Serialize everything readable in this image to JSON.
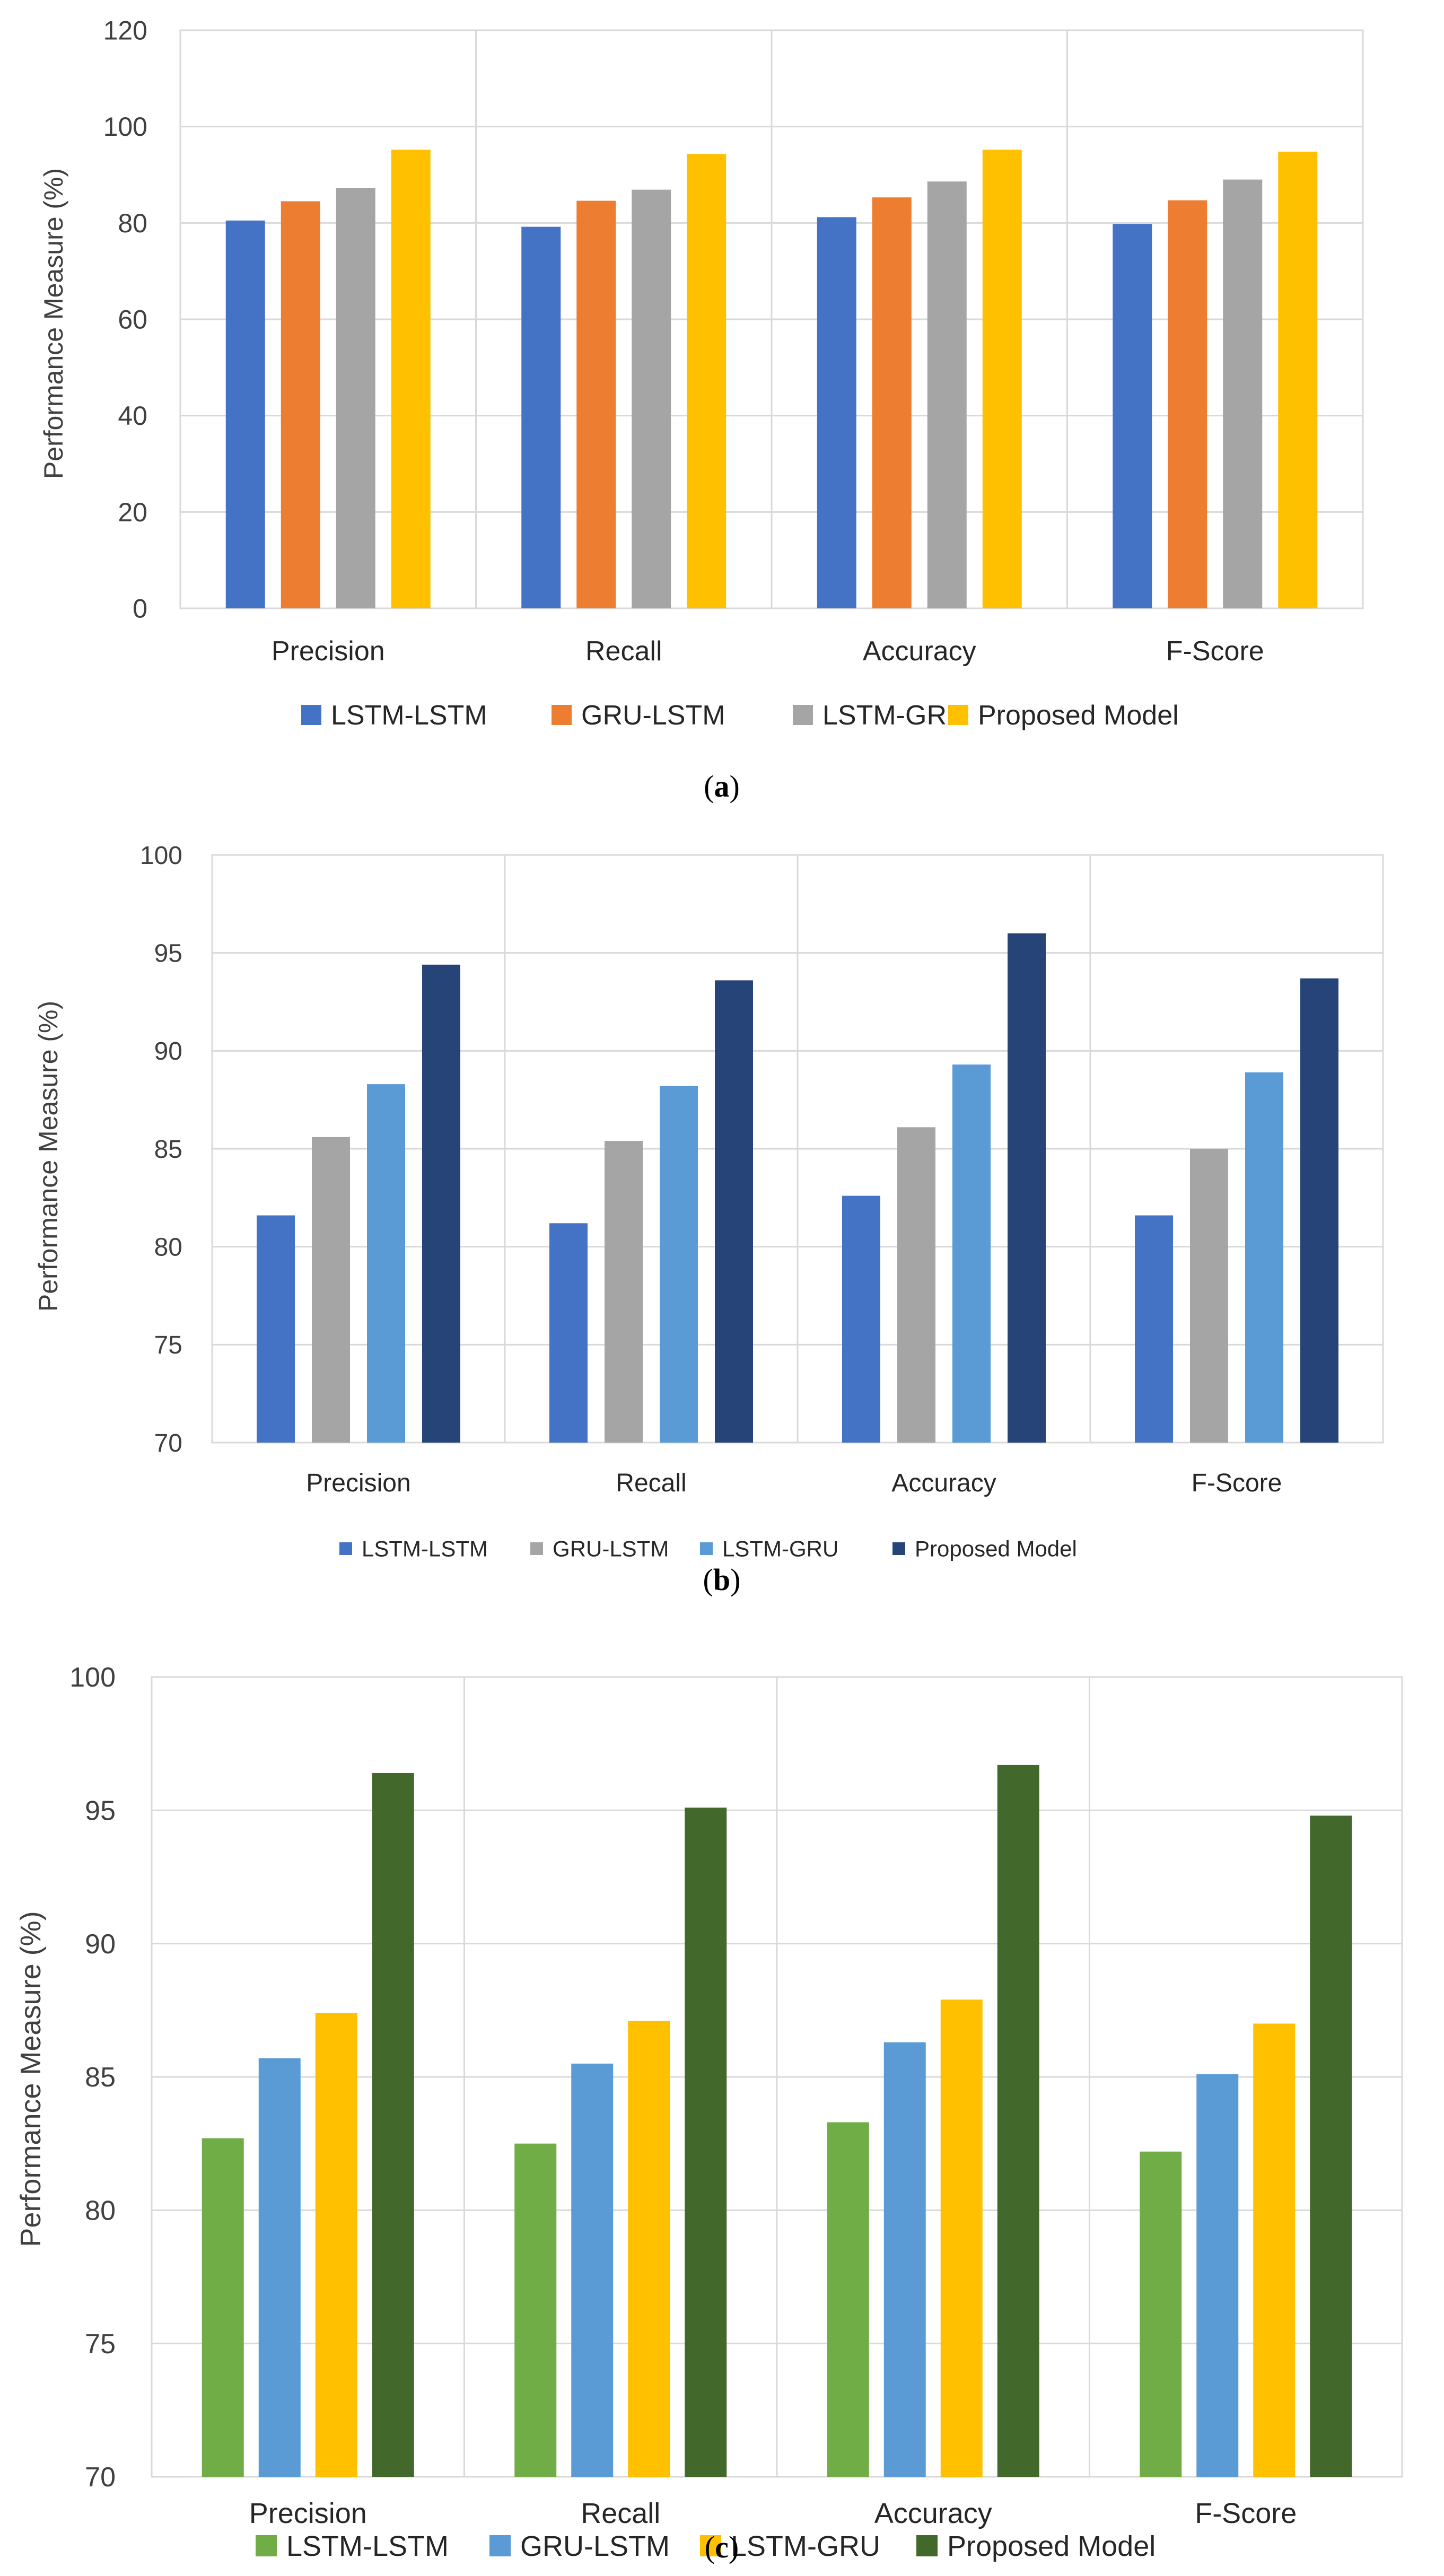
{
  "chart_data": [
    {
      "type": "bar",
      "id": "a",
      "caption_open": "(",
      "caption_letter": "a",
      "caption_close": ")",
      "categories": [
        "Precision",
        "Recall",
        "Accuracy",
        "F-Score"
      ],
      "ylabel": "Performance Measure (%)",
      "xlabel": "",
      "ylim": [
        0,
        120
      ],
      "yticks": [
        "0",
        "20",
        "40",
        "60",
        "80",
        "100",
        "120"
      ],
      "grid": true,
      "legend_position": "bottom",
      "series": [
        {
          "name": "LSTM-LSTM",
          "color": "#4472c4",
          "values": [
            80.5,
            79.2,
            81.2,
            79.8
          ]
        },
        {
          "name": "GRU-LSTM",
          "color": "#ed7d31",
          "values": [
            84.5,
            84.6,
            85.3,
            84.7
          ]
        },
        {
          "name": "LSTM-GRU",
          "color": "#a5a5a5",
          "values": [
            87.3,
            86.9,
            88.6,
            89.0
          ]
        },
        {
          "name": "Proposed Model",
          "color": "#ffc000",
          "values": [
            95.2,
            94.3,
            95.2,
            94.8
          ]
        }
      ]
    },
    {
      "type": "bar",
      "id": "b",
      "caption_open": "(",
      "caption_letter": "b",
      "caption_close": ")",
      "categories": [
        "Precision",
        "Recall",
        "Accuracy",
        "F-Score"
      ],
      "ylabel": "Performance Measure (%)",
      "xlabel": "",
      "ylim": [
        70,
        100
      ],
      "yticks": [
        "70",
        "75",
        "80",
        "85",
        "90",
        "95",
        "100"
      ],
      "grid": true,
      "legend_position": "bottom",
      "series": [
        {
          "name": "LSTM-LSTM",
          "color": "#4472c4",
          "values": [
            81.6,
            81.2,
            82.6,
            81.6
          ]
        },
        {
          "name": "GRU-LSTM",
          "color": "#a5a5a5",
          "values": [
            85.6,
            85.4,
            86.1,
            85.0
          ]
        },
        {
          "name": "LSTM-GRU",
          "color": "#5b9bd5",
          "values": [
            88.3,
            88.2,
            89.3,
            88.9
          ]
        },
        {
          "name": "Proposed Model",
          "color": "#264478",
          "values": [
            94.4,
            93.6,
            96.0,
            93.7
          ]
        }
      ]
    },
    {
      "type": "bar",
      "id": "c",
      "caption_open": "(",
      "caption_letter": "c",
      "caption_close": ")",
      "categories": [
        "Precision",
        "Recall",
        "Accuracy",
        "F-Score"
      ],
      "ylabel": "Performance Measure (%)",
      "xlabel": "",
      "ylim": [
        70,
        100
      ],
      "yticks": [
        "70",
        "75",
        "80",
        "85",
        "90",
        "95",
        "100"
      ],
      "grid": true,
      "legend_position": "bottom",
      "series": [
        {
          "name": "LSTM-LSTM",
          "color": "#70ad47",
          "values": [
            82.7,
            82.5,
            83.3,
            82.2
          ]
        },
        {
          "name": "GRU-LSTM",
          "color": "#5b9bd5",
          "values": [
            85.7,
            85.5,
            86.3,
            85.1
          ]
        },
        {
          "name": "LSTM-GRU",
          "color": "#ffc000",
          "values": [
            87.4,
            87.1,
            87.9,
            87.0
          ]
        },
        {
          "name": "Proposed Model",
          "color": "#43682b",
          "values": [
            96.4,
            95.1,
            96.7,
            94.8
          ]
        }
      ]
    }
  ]
}
